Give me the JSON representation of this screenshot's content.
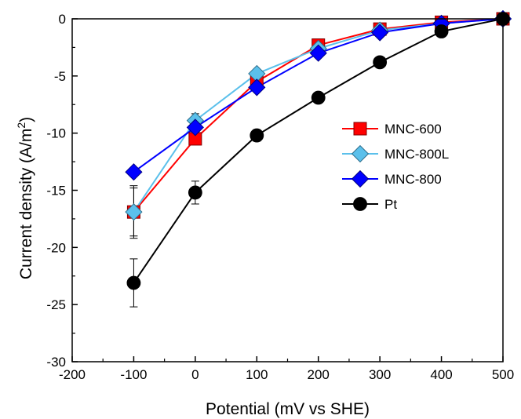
{
  "chart_data": {
    "type": "line",
    "title": "",
    "xlabel": "Potential (mV vs SHE)",
    "ylabel_main": "Current density (A/m",
    "ylabel_sup": "2",
    "ylabel_close": ")",
    "xlim": [
      -200,
      500
    ],
    "ylim": [
      -30,
      0
    ],
    "xticks": [
      -200,
      -100,
      0,
      100,
      200,
      300,
      400,
      500
    ],
    "yticks": [
      -30,
      -25,
      -20,
      -15,
      -10,
      -5,
      0
    ],
    "grid": false,
    "legend_position": "right-middle",
    "series": [
      {
        "name": "MNC-600",
        "color": "#ff0000",
        "edge": "#800000",
        "marker": "square",
        "x": [
          -100,
          0,
          100,
          200,
          300,
          400,
          500
        ],
        "y": [
          -16.9,
          -10.5,
          -5.5,
          -2.3,
          -0.9,
          -0.3,
          0
        ],
        "yerr": [
          2.1,
          0.3,
          0.4,
          0.3,
          0.2,
          0.1,
          0
        ]
      },
      {
        "name": "MNC-800L",
        "color": "#5bc0eb",
        "edge": "#2f6f8c",
        "marker": "diamond",
        "x": [
          -100,
          0,
          100,
          200,
          300,
          400,
          500
        ],
        "y": [
          -16.9,
          -8.9,
          -4.8,
          -2.6,
          -1.0,
          -0.4,
          0
        ],
        "yerr": [
          2.3,
          0.6,
          0.3,
          0.3,
          0.2,
          0.1,
          0
        ]
      },
      {
        "name": "MNC-800",
        "color": "#0000ff",
        "edge": "#000080",
        "marker": "diamond",
        "x": [
          -100,
          0,
          100,
          200,
          300,
          400,
          500
        ],
        "y": [
          -13.4,
          -9.5,
          -6.0,
          -3.0,
          -1.2,
          -0.4,
          0
        ],
        "yerr": [
          0.3,
          0.4,
          0.3,
          0.2,
          0.1,
          0.1,
          0
        ]
      },
      {
        "name": "Pt",
        "color": "#000000",
        "edge": "#000000",
        "marker": "circle",
        "x": [
          -100,
          0,
          100,
          200,
          300,
          400,
          500
        ],
        "y": [
          -23.1,
          -15.2,
          -10.2,
          -6.9,
          -3.8,
          -1.1,
          0
        ],
        "yerr": [
          2.1,
          1.0,
          0.5,
          0.3,
          0.2,
          0.2,
          0
        ]
      }
    ]
  }
}
